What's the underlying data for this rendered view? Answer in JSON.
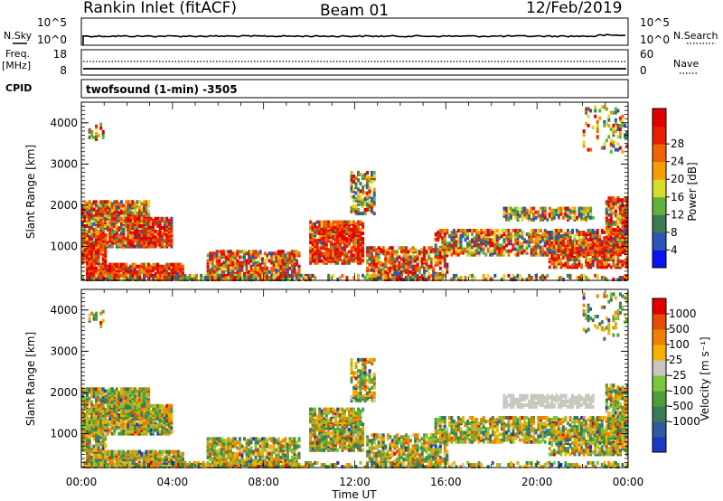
{
  "header": {
    "station": "Rankin Inlet (fitACF)",
    "beam": "Beam 01",
    "date": "12/Feb/2019"
  },
  "top_panels": {
    "nsky_label": "N.Sky",
    "nsearch_label": "N.Search",
    "nsky_ticks": [
      "10^5",
      "10^0"
    ],
    "nsearch_ticks": [
      "10^5",
      "10^0"
    ],
    "freq_label": "Freq.",
    "freq_unit": "[MHz]",
    "freq_ticks": [
      "18",
      "8"
    ],
    "nave_label": "Nave",
    "nave_ticks": [
      "60",
      "0"
    ],
    "cpid_label": "CPID",
    "cpid_value": "twofsound (1-min) -3505"
  },
  "chart_data": [
    {
      "type": "heatmap",
      "panel": "power",
      "xlabel": "",
      "ylabel": "Slant Range [km]",
      "x_range": [
        "00:00",
        "00:00"
      ],
      "ylim": [
        180,
        4500
      ],
      "y_ticks": [
        1000,
        2000,
        3000,
        4000
      ],
      "colorbar_label": "Power [dB]",
      "colorbar_ticks": [
        "4",
        "8",
        "12",
        "16",
        "20",
        "24",
        "28"
      ],
      "colorbar_colors": [
        "#0a14f0",
        "#2a55b5",
        "#3a7a55",
        "#60b040",
        "#d7dc2a",
        "#f5a000",
        "#f06400",
        "#e81e00",
        "#e00000"
      ]
    },
    {
      "type": "heatmap",
      "panel": "velocity",
      "xlabel": "Time UT",
      "ylabel": "Slant Range [km]",
      "x_ticks": [
        "00:00",
        "04:00",
        "08:00",
        "12:00",
        "16:00",
        "20:00",
        "00:00"
      ],
      "ylim": [
        180,
        4500
      ],
      "y_ticks": [
        1000,
        2000,
        3000,
        4000
      ],
      "colorbar_label": "Velocity [m s⁻¹]",
      "colorbar_ticks": [
        "1000",
        "500",
        "100",
        "25",
        "-25",
        "-100",
        "-500",
        "-1000"
      ],
      "colorbar_colors": [
        "#1d38c8",
        "#2e5aa0",
        "#3a7a55",
        "#4e9e3c",
        "#7ac83a",
        "#c8c8c0",
        "#f5b000",
        "#f08000",
        "#e84a00",
        "#e00000"
      ]
    }
  ]
}
